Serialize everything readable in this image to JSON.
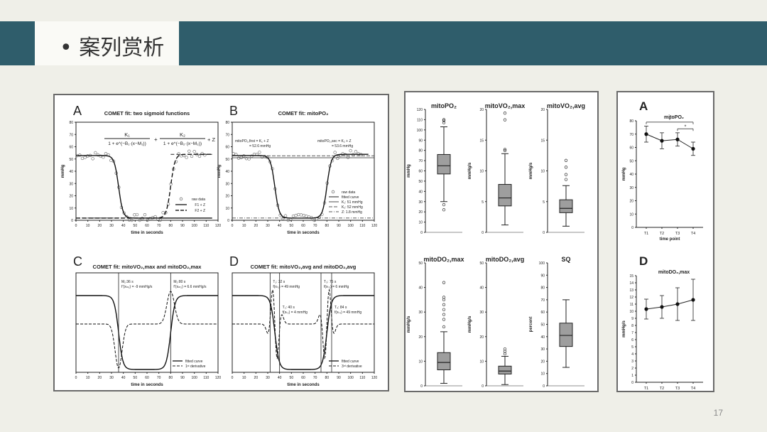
{
  "slide": {
    "title": "• 案列赏析",
    "page_number": "17",
    "header_color": "#2f5d6b"
  },
  "left_panel": {
    "A": {
      "letter": "A",
      "title": "COMET fit: two sigmoid functions",
      "ylabel": "mmHg",
      "xlabel": "time in seconds",
      "formula": {
        "n1": "K₁",
        "d1": "1 + e^(−B₁·(x−M₁))",
        "n2": "K₂",
        "d2": "1 + e^(−B₂·(x−M₂))",
        "tail": "+ Z"
      },
      "legend": [
        "raw data",
        "F1 + Z",
        "F2 + Z"
      ]
    },
    "B": {
      "letter": "B",
      "title": "COMET fit: mitoPO₂",
      "ann_left": [
        "mitoPO₂,first = K₁ + Z",
        "= 52.6 mmHg"
      ],
      "ann_right": [
        "mitoPO₂,sec = K₂ + Z",
        "= 53.6 mmHg"
      ],
      "legend": [
        "raw data",
        "fitted curve",
        "K₁: 51 mmHg",
        "K₂: 52 mmHg",
        "Z: 1.8 mmHg"
      ]
    },
    "C": {
      "letter": "C",
      "title": "COMET fit: mitoVO₂,max and mitoDO₂,max",
      "ann_left": [
        "M₁:36 s",
        "f’(xₘ₁) = -9 mmHg/s"
      ],
      "ann_right": [
        "M₂:80 s",
        "f’(xₘ₂) = 6.6 mmHg/s"
      ],
      "legend": [
        "fitted curve",
        "1ˢᵗ derivative"
      ]
    },
    "D": {
      "letter": "D",
      "title": "COMET fit: mitoVO₂,avg and mitoDO₂,avg",
      "ann1": [
        "T₁: 32 s",
        "f(xₜ₁) = 49 mmHg"
      ],
      "ann2": [
        "T₃: 75 s",
        "f(xₜ₃) = 6 mmHg"
      ],
      "ann3": [
        "T₂: 40 s",
        "f(xₜ₂) = 4 mmHg"
      ],
      "ann4": [
        "T₄: 84 s",
        "f(xₜ₄) = 49 mmHg"
      ],
      "legend": [
        "fitted curve",
        "3ʳᵈ derivative"
      ]
    },
    "time_ticks": [
      "0",
      "10",
      "20",
      "30",
      "40",
      "50",
      "60",
      "70",
      "80",
      "90",
      "100",
      "110",
      "120"
    ],
    "mmhg_ticks": [
      "0",
      "10",
      "20",
      "30",
      "40",
      "50",
      "60",
      "70",
      "80"
    ]
  },
  "chart_data": [
    {
      "type": "scatter",
      "title": "COMET fit: two sigmoid functions",
      "xlabel": "time in seconds",
      "ylabel": "mmHg",
      "xlim": [
        0,
        120
      ],
      "ylim": [
        0,
        80
      ],
      "series": [
        {
          "name": "raw data"
        },
        {
          "name": "F1 + Z",
          "params": {
            "K": 51,
            "M": 36,
            "Z": 1.8
          }
        },
        {
          "name": "F2 + Z",
          "params": {
            "K": 52,
            "M": 80,
            "Z": 1.8
          }
        }
      ]
    },
    {
      "type": "line",
      "title": "COMET fit: mitoPO₂",
      "xlabel": "time in seconds",
      "ylabel": "mmHg",
      "xlim": [
        0,
        120
      ],
      "ylim": [
        0,
        80
      ],
      "series": [
        {
          "name": "raw data"
        },
        {
          "name": "fitted curve"
        },
        {
          "name": "K₁: 51 mmHg",
          "value": 51
        },
        {
          "name": "K₂: 52 mmHg",
          "value": 52
        },
        {
          "name": "Z: 1.8 mmHg",
          "value": 1.8
        }
      ]
    },
    {
      "type": "line",
      "title": "COMET fit: mitoVO₂,max and mitoDO₂,max",
      "xlabel": "time in seconds",
      "xlim": [
        0,
        120
      ],
      "markers": [
        36,
        80
      ],
      "series": [
        {
          "name": "fitted curve"
        },
        {
          "name": "1ˢᵗ derivative"
        }
      ]
    },
    {
      "type": "line",
      "title": "COMET fit: mitoVO₂,avg and mitoDO₂,avg",
      "xlabel": "time in seconds",
      "xlim": [
        0,
        120
      ],
      "markers": [
        32,
        40,
        75,
        84
      ],
      "series": [
        {
          "name": "fitted curve"
        },
        {
          "name": "3ʳᵈ derivative"
        }
      ]
    },
    {
      "type": "box",
      "title": "mitoPO₂",
      "ylabel": "mmHg",
      "ylim": [
        0,
        120
      ],
      "yticks": [
        "0",
        "10",
        "20",
        "30",
        "40",
        "50",
        "60",
        "70",
        "80",
        "90",
        "100",
        "110",
        "120"
      ],
      "box": {
        "min": 30,
        "q1": 57,
        "median": 65,
        "q3": 76,
        "max": 103
      },
      "outliers": [
        22,
        27,
        107,
        109,
        110
      ]
    },
    {
      "type": "box",
      "title": "mitoVO₂,max",
      "ylabel": "mmHg/s",
      "ylim": [
        0,
        20
      ],
      "yticks": [
        "0",
        "5",
        "10",
        "15",
        "20"
      ],
      "box": {
        "min": 1.2,
        "q1": 4.3,
        "median": 5.6,
        "q3": 7.8,
        "max": 12.8
      },
      "outliers": [
        13.3,
        13.5,
        18.3,
        19.4
      ]
    },
    {
      "type": "box",
      "title": "mitoVO₂,avg",
      "ylabel": "mmHg/s",
      "ylim": [
        0,
        20
      ],
      "yticks": [
        "0",
        "5",
        "10",
        "15",
        "20"
      ],
      "box": {
        "min": 1.0,
        "q1": 3.2,
        "median": 3.9,
        "q3": 5.3,
        "max": 7.6
      },
      "outliers": [
        8.6,
        9.4,
        10.6,
        11.7
      ]
    },
    {
      "type": "box",
      "title": "mitoDO₂,max",
      "ylabel": "mmHg/s",
      "ylim": [
        0,
        50
      ],
      "yticks": [
        "0",
        "10",
        "20",
        "30",
        "40",
        "50"
      ],
      "box": {
        "min": 1,
        "q1": 6.5,
        "median": 9.5,
        "q3": 13.5,
        "max": 22
      },
      "outliers": [
        24,
        27,
        29,
        31,
        33,
        35,
        36,
        42
      ]
    },
    {
      "type": "box",
      "title": "mitoDO₂,avg",
      "ylabel": "mmHg/s",
      "ylim": [
        0,
        50
      ],
      "yticks": [
        "0",
        "10",
        "20",
        "30",
        "40",
        "50"
      ],
      "box": {
        "min": 0.5,
        "q1": 4.8,
        "median": 6,
        "q3": 8,
        "max": 12
      },
      "outliers": [
        13,
        14,
        15
      ]
    },
    {
      "type": "box",
      "title": "SQ",
      "ylabel": "percent",
      "ylim": [
        0,
        100
      ],
      "yticks": [
        "0",
        "10",
        "20",
        "30",
        "40",
        "50",
        "60",
        "70",
        "80",
        "90",
        "100"
      ],
      "box": {
        "min": 15,
        "q1": 32,
        "median": 41,
        "q3": 51,
        "max": 70
      },
      "outliers": []
    },
    {
      "type": "line",
      "letter": "A",
      "title": "mitoPO₂",
      "ylabel": "mmHg",
      "xlabel": "time point",
      "categories": [
        "T1",
        "T2",
        "T3",
        "T4"
      ],
      "ylim": [
        0,
        80
      ],
      "yticks": [
        "0",
        "10",
        "20",
        "30",
        "40",
        "50",
        "60",
        "70",
        "80"
      ],
      "values": [
        70,
        65,
        66,
        59
      ],
      "err": [
        6,
        6,
        5,
        5
      ],
      "annotations": [
        "*",
        "*"
      ]
    },
    {
      "type": "line",
      "letter": "D",
      "title": "mitoDO₂,max",
      "ylabel": "mmHg/s",
      "xlabel": "time point",
      "categories": [
        "T1",
        "T2",
        "T3",
        "T4"
      ],
      "ylim": [
        0,
        15
      ],
      "yticks": [
        "0",
        "1",
        "2",
        "3",
        "4",
        "5",
        "6",
        "7",
        "8",
        "9",
        "10",
        "11",
        "12",
        "13",
        "14",
        "15"
      ],
      "values": [
        10.3,
        10.6,
        11.0,
        11.6
      ],
      "err": [
        1.4,
        1.6,
        2.3,
        2.9
      ]
    }
  ]
}
